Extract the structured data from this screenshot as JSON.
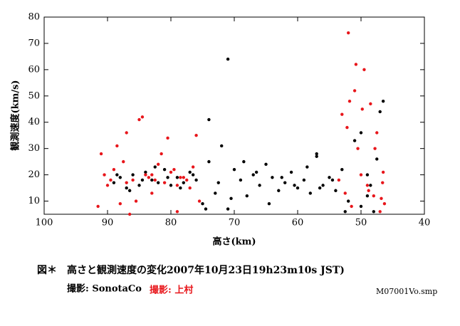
{
  "chart_data": {
    "type": "scatter",
    "xlabel": "高さ(km)",
    "ylabel": "観測速度(km/s)",
    "caption": "図＊　高さと観測速度の変化2007年10月23日19h23m10s JST)",
    "file_label": "M07001Vo.smp",
    "xlim": [
      100,
      40
    ],
    "xticks": [
      100,
      90,
      80,
      70,
      60,
      50,
      40
    ],
    "ylim": [
      5,
      80
    ],
    "yticks": [
      10,
      20,
      30,
      40,
      50,
      60,
      70,
      80
    ],
    "series": [
      {
        "name": "撮影: SonotaCo",
        "color": "#000000",
        "x": [
          89,
          88,
          87,
          86,
          85,
          84,
          83,
          82,
          81,
          80,
          79,
          78,
          77,
          76,
          75,
          74,
          73,
          72,
          71,
          70,
          69,
          68,
          67,
          66,
          65,
          64,
          63,
          62,
          61,
          60,
          59,
          58,
          57,
          56,
          55,
          54,
          53,
          52,
          51,
          50,
          49,
          48,
          47,
          46.5,
          71,
          74,
          57,
          50,
          49,
          47.5,
          88.5,
          86.5,
          84.5,
          82.5,
          80.5,
          78.5,
          76.5,
          74.5,
          72.5,
          70.5,
          68.5,
          66.5,
          64.5,
          62.5,
          60.5,
          58.5,
          56.5,
          54.5,
          52.5,
          48.5
        ],
        "values": [
          17,
          19,
          15,
          20,
          16,
          21,
          18,
          17,
          22,
          16,
          19,
          17,
          21,
          18,
          9,
          25,
          13,
          31,
          7,
          22,
          18,
          12,
          20,
          16,
          24,
          19,
          14,
          17,
          21,
          15,
          18,
          13,
          28,
          16,
          19,
          14,
          22,
          10,
          33,
          8,
          20,
          6,
          44,
          48,
          64,
          41,
          27,
          36,
          12,
          26,
          20,
          14,
          18,
          23,
          19,
          15,
          20,
          7,
          17,
          11,
          25,
          21,
          9,
          19,
          16,
          23,
          15,
          18,
          6,
          16
        ]
      },
      {
        "name": "撮影: 上村",
        "color": "#e8161b",
        "x": [
          91,
          90,
          89,
          88,
          87,
          86,
          85,
          84,
          83,
          82,
          81,
          80,
          79,
          78,
          77,
          76,
          90.5,
          88.5,
          86.5,
          84.5,
          82.5,
          80.5,
          78.5,
          76.5,
          53,
          52.5,
          52,
          51.5,
          51,
          50.5,
          50,
          49.5,
          49,
          48.5,
          48,
          47.5,
          47,
          46.5,
          46.3,
          51.8,
          91.5,
          89.5,
          87.5,
          85.5,
          83.5,
          81.5,
          79.5,
          77.5,
          75.5,
          87,
          83,
          79,
          53.5,
          52.2,
          50.8,
          49.8,
          48.8,
          47.8,
          46.8,
          46.6
        ],
        "values": [
          28,
          16,
          22,
          9,
          36,
          18,
          41,
          20,
          13,
          24,
          17,
          21,
          6,
          19,
          15,
          35,
          20,
          31,
          5,
          42,
          18,
          34,
          19,
          23,
          43,
          13,
          74,
          8,
          52,
          30,
          20,
          60,
          16,
          47,
          12,
          36,
          6,
          21,
          9,
          48,
          8,
          18,
          25,
          10,
          19,
          28,
          22,
          18,
          10,
          17,
          20,
          16,
          18,
          38,
          62,
          45,
          14,
          30,
          11,
          17
        ]
      }
    ]
  }
}
